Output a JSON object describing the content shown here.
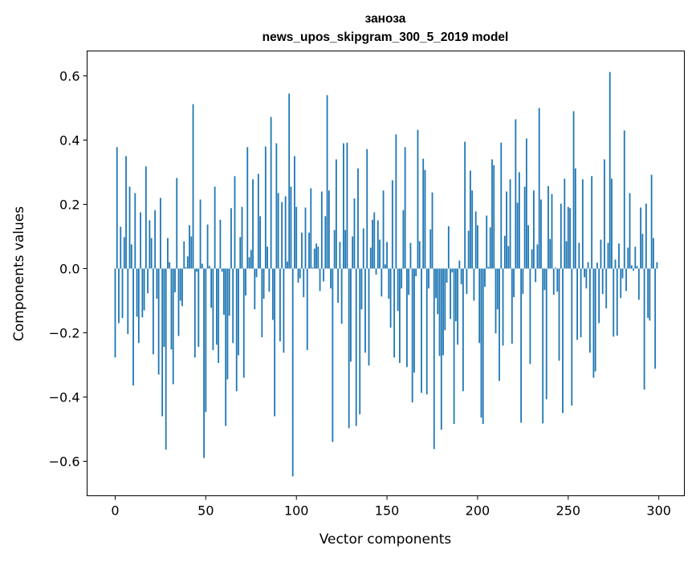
{
  "chart_data": {
    "type": "bar",
    "title": [
      "заноза",
      "news_upos_skipgram_300_5_2019 model"
    ],
    "xlabel": "Vector components",
    "ylabel": "Components values",
    "xlim": [
      -15.5,
      314.1
    ],
    "ylim": [
      -0.7075,
      0.6775
    ],
    "bar_color": "#1f77b4",
    "bar_width": 0.8,
    "grid": false,
    "xticks": [
      0,
      50,
      100,
      150,
      200,
      250,
      300
    ],
    "xtick_labels": [
      "0",
      "50",
      "100",
      "150",
      "200",
      "250",
      "300"
    ],
    "yticks": [
      -0.6,
      -0.4,
      -0.2,
      0.0,
      0.2,
      0.4,
      0.6
    ],
    "ytick_labels": [
      "−0.6",
      "−0.4",
      "−0.2",
      "0.0",
      "0.2",
      "0.4",
      "0.6"
    ],
    "values": [
      -0.277,
      0.378,
      -0.17,
      0.13,
      -0.154,
      0.098,
      0.35,
      -0.204,
      0.255,
      0.075,
      -0.364,
      0.235,
      -0.15,
      -0.232,
      0.175,
      -0.152,
      -0.13,
      0.318,
      -0.077,
      0.15,
      0.095,
      -0.267,
      0.182,
      -0.094,
      -0.33,
      0.22,
      -0.46,
      -0.244,
      -0.564,
      0.095,
      0.02,
      -0.252,
      -0.36,
      -0.074,
      0.282,
      -0.21,
      -0.1,
      -0.117,
      0.085,
      0.004,
      0.038,
      0.135,
      0.1,
      0.512,
      -0.277,
      -0.01,
      -0.244,
      0.215,
      0.015,
      -0.59,
      -0.447,
      0.137,
      0.008,
      -0.122,
      -0.254,
      0.255,
      -0.237,
      -0.294,
      0.152,
      -0.01,
      -0.144,
      -0.49,
      -0.345,
      -0.147,
      0.188,
      -0.232,
      0.288,
      -0.382,
      -0.27,
      0.098,
      0.192,
      -0.34,
      -0.084,
      0.378,
      0.035,
      0.058,
      0.278,
      -0.127,
      -0.027,
      0.295,
      0.163,
      -0.214,
      -0.094,
      0.38,
      0.068,
      -0.072,
      0.472,
      -0.16,
      -0.46,
      0.39,
      0.235,
      -0.227,
      0.207,
      -0.262,
      0.225,
      0.022,
      0.545,
      0.255,
      -0.647,
      0.35,
      0.192,
      -0.044,
      -0.03,
      0.112,
      -0.089,
      0.19,
      -0.254,
      0.112,
      0.25,
      0.003,
      0.062,
      0.078,
      0.068,
      -0.07,
      0.24,
      -0.04,
      0.163,
      0.54,
      0.243,
      -0.062,
      -0.54,
      0.12,
      0.34,
      -0.107,
      0.083,
      -0.172,
      0.39,
      0.12,
      0.392,
      -0.497,
      -0.29,
      0.1,
      0.218,
      -0.49,
      0.312,
      -0.454,
      -0.127,
      0.125,
      -0.262,
      0.372,
      -0.302,
      0.065,
      0.152,
      0.175,
      -0.019,
      0.15,
      0.09,
      -0.087,
      0.243,
      0.013,
      0.083,
      -0.094,
      -0.184,
      0.275,
      -0.277,
      0.418,
      -0.132,
      -0.294,
      -0.062,
      0.182,
      0.378,
      -0.307,
      -0.082,
      0.08,
      -0.417,
      -0.324,
      -0.024,
      0.432,
      0.085,
      -0.387,
      0.342,
      0.307,
      -0.392,
      -0.062,
      0.122,
      0.237,
      -0.562,
      -0.092,
      -0.142,
      -0.272,
      -0.502,
      -0.27,
      -0.192,
      -0.044,
      0.132,
      -0.157,
      -0.012,
      -0.484,
      -0.164,
      -0.237,
      0.025,
      -0.049,
      -0.382,
      0.395,
      -0.079,
      0.118,
      0.305,
      0.243,
      -0.1,
      0.178,
      0.135,
      -0.232,
      -0.464,
      -0.484,
      -0.057,
      0.165,
      0.005,
      0.128,
      0.34,
      0.322,
      -0.202,
      -0.127,
      -0.35,
      0.392,
      -0.24,
      0.102,
      0.24,
      0.07,
      0.278,
      -0.234,
      -0.089,
      0.465,
      0.205,
      0.3,
      -0.48,
      -0.079,
      0.255,
      0.405,
      0.135,
      -0.297,
      0.06,
      0.243,
      -0.042,
      0.075,
      0.5,
      0.215,
      -0.482,
      -0.067,
      -0.407,
      0.257,
      0.092,
      0.232,
      -0.082,
      0.003,
      -0.072,
      -0.287,
      0.202,
      -0.45,
      0.28,
      0.085,
      0.192,
      0.188,
      -0.427,
      0.49,
      0.312,
      -0.222,
      0.08,
      -0.214,
      0.278,
      -0.027,
      -0.062,
      0.02,
      -0.262,
      0.288,
      -0.34,
      -0.32,
      0.018,
      -0.17,
      0.09,
      -0.079,
      0.34,
      -0.124,
      0.08,
      0.612,
      0.28,
      -0.212,
      0.028,
      -0.209,
      0.078,
      -0.092,
      -0.03,
      0.43,
      -0.07,
      0.065,
      0.235,
      0.01,
      -0.007,
      0.068,
      0.008,
      -0.097,
      0.19,
      0.108,
      -0.377,
      0.202,
      -0.154,
      -0.162,
      0.292,
      0.095,
      -0.312,
      0.02
    ]
  }
}
